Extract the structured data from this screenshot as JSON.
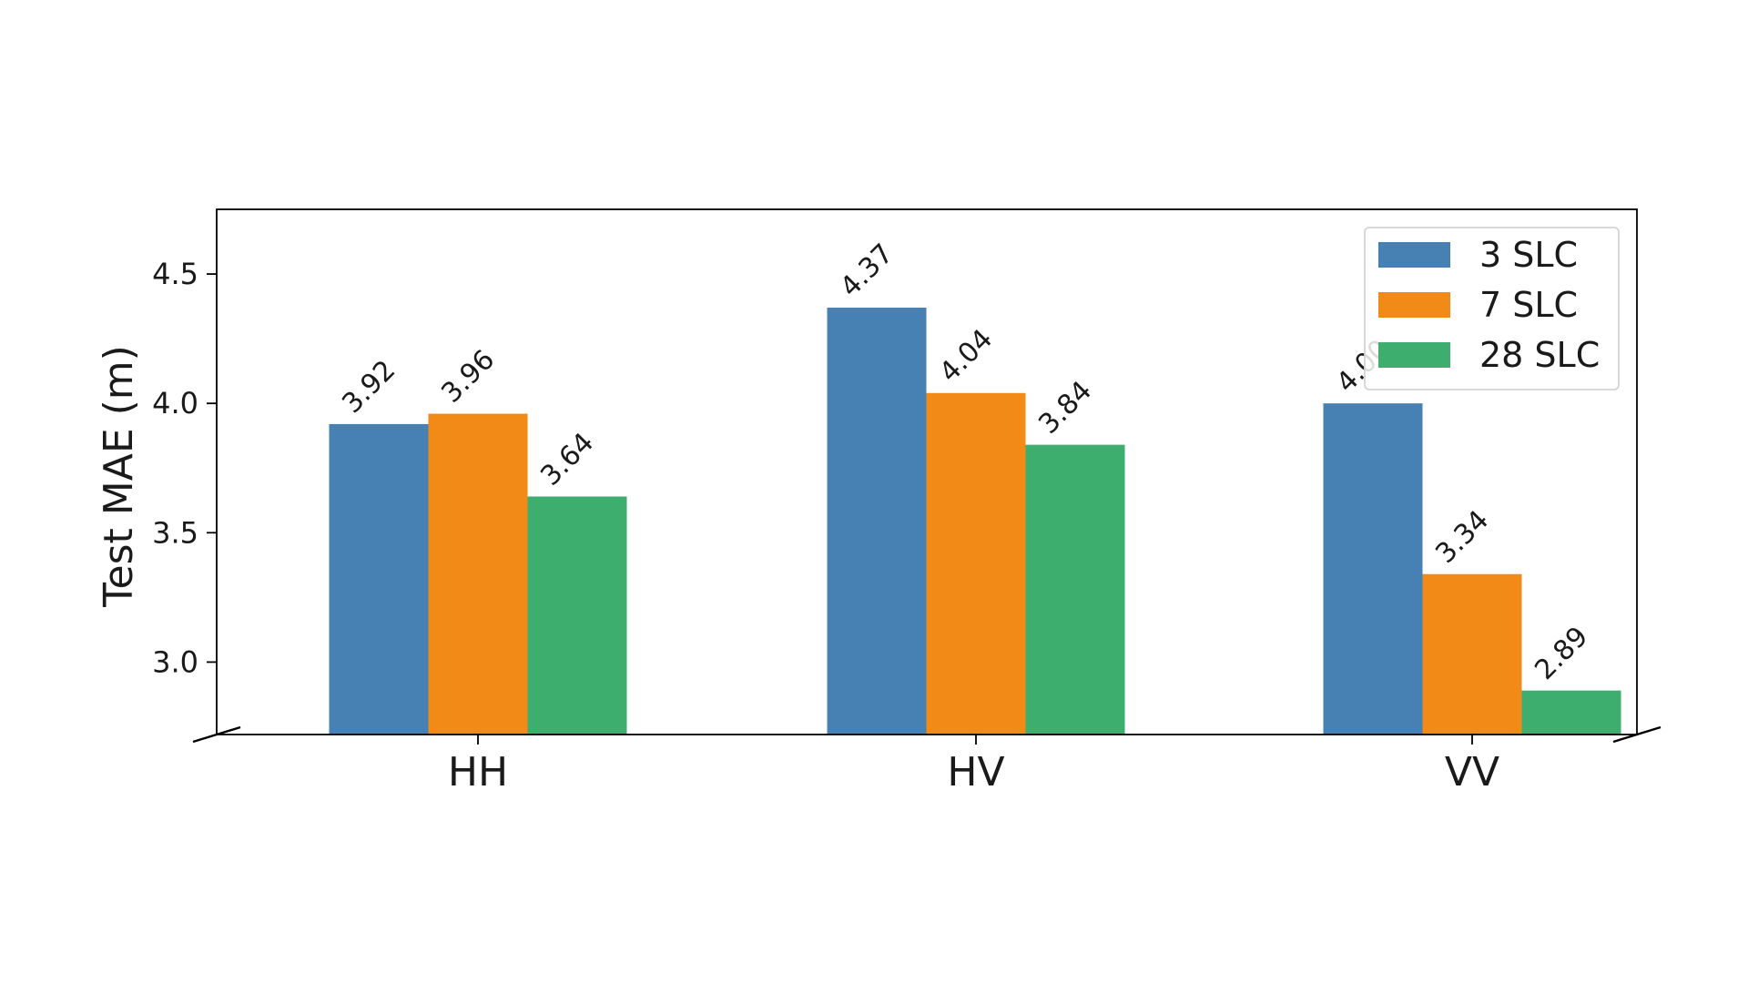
{
  "chart_data": {
    "type": "bar",
    "title": "",
    "xlabel": "",
    "ylabel": "Test MAE (m)",
    "categories": [
      "HH",
      "HV",
      "VV"
    ],
    "ylim": [
      2.72,
      4.75
    ],
    "yticks": [
      "3.0",
      "3.5",
      "4.0",
      "4.5"
    ],
    "grid": false,
    "legend_position": "top-right",
    "series": [
      {
        "name": "3 SLC",
        "color": "#4780b3",
        "values": [
          3.92,
          4.37,
          4.0
        ],
        "labels": [
          "3.92",
          "4.37",
          "4.00"
        ]
      },
      {
        "name": "7 SLC",
        "color": "#f28a17",
        "values": [
          3.96,
          4.04,
          3.34
        ],
        "labels": [
          "3.96",
          "4.04",
          "3.34"
        ]
      },
      {
        "name": "28 SLC",
        "color": "#3eae6f",
        "values": [
          3.64,
          3.84,
          2.89
        ],
        "labels": [
          "3.64",
          "3.84",
          "2.89"
        ]
      }
    ]
  }
}
